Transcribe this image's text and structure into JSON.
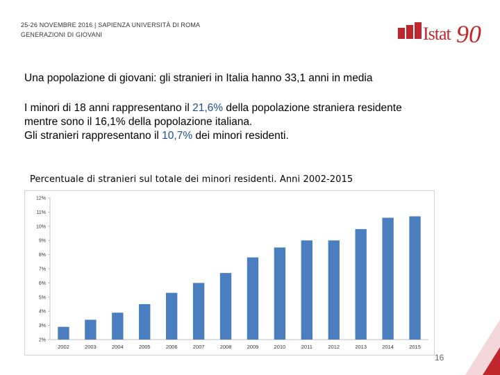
{
  "header": {
    "line1": "25-26 NOVEMBRE 2016 | SAPIENZA UNIVERSITÀ DI ROMA",
    "line2": "GENERAZIONI DI GIOVANI"
  },
  "logo": {
    "word": "Istat",
    "anniversary": "90",
    "brand_color": "#c0272d"
  },
  "title": "Una popolazione di giovani: gli stranieri in Italia hanno 33,1 anni in media",
  "body": {
    "l1_pre": "I minori di 18 anni rappresentano il ",
    "l1_hl": "21,6%",
    "l1_post": " della popolazione straniera residente",
    "l2": "mentre sono il 16,1% della popolazione italiana.",
    "l3_pre": "Gli stranieri rappresentano il ",
    "l3_hl": "10,7%",
    "l3_post": " dei minori residenti.",
    "highlight_color": "#1f4e9a"
  },
  "chart_title": "Percentuale di stranieri sul totale dei minori residenti. Anni 2002-2015",
  "chart_data": {
    "type": "bar",
    "title": "Percentuale di stranieri sul totale dei minori residenti. Anni 2002-2015",
    "categories": [
      "2002",
      "2003",
      "2004",
      "2005",
      "2006",
      "2007",
      "2008",
      "2009",
      "2010",
      "2011",
      "2012",
      "2013",
      "2014",
      "2015"
    ],
    "values": [
      2.9,
      3.4,
      3.9,
      4.5,
      5.3,
      6.0,
      6.7,
      7.8,
      8.5,
      9.0,
      9.0,
      9.8,
      10.6,
      10.7
    ],
    "ylim": [
      2,
      12
    ],
    "yticks": [
      2,
      3,
      4,
      5,
      6,
      7,
      8,
      9,
      10,
      11,
      12
    ],
    "ytick_labels": [
      "2%",
      "3%",
      "4%",
      "5%",
      "6%",
      "7%",
      "8%",
      "9%",
      "10%",
      "11%",
      "12%"
    ],
    "bar_color": "#4a7ebf",
    "grid": false
  },
  "slide_number": "16"
}
